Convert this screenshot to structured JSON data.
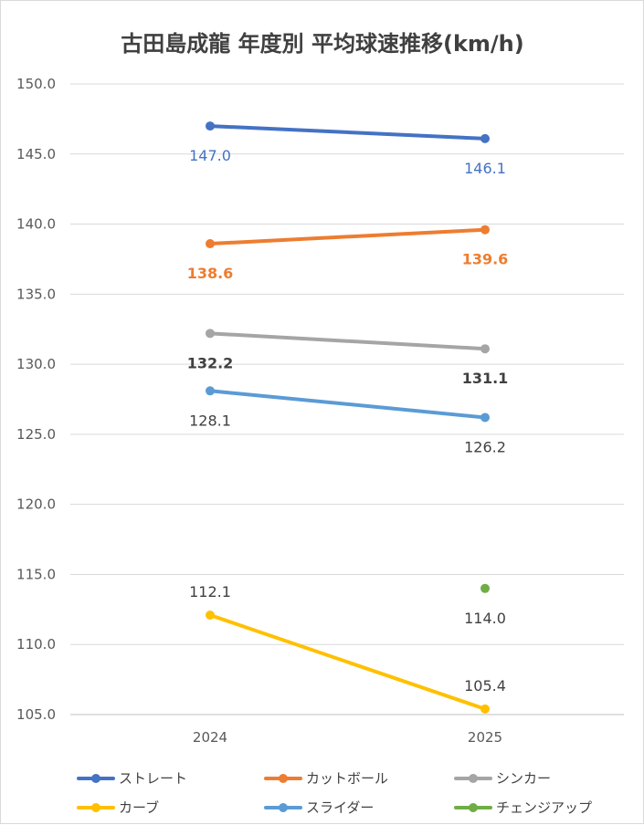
{
  "chart_data": {
    "type": "line",
    "title": "古田島成龍 年度別 平均球速推移(km/h)",
    "categories": [
      "2024",
      "2025"
    ],
    "ylim": [
      105,
      150
    ],
    "yticks": [
      "105.0",
      "110.0",
      "115.0",
      "120.0",
      "125.0",
      "130.0",
      "135.0",
      "140.0",
      "145.0",
      "150.0"
    ],
    "grid": true,
    "legend": "bottom",
    "series": [
      {
        "name": "ストレート",
        "values": [
          147.0,
          146.1
        ],
        "labels": [
          "147.0",
          "146.1"
        ],
        "color": "#4472C4",
        "label_color": "#4472C4",
        "label_pos": [
          "below",
          "below"
        ],
        "bold": false
      },
      {
        "name": "カットボール",
        "values": [
          138.6,
          139.6
        ],
        "labels": [
          "138.6",
          "139.6"
        ],
        "color": "#ED7D31",
        "label_color": "#ED7D31",
        "label_pos": [
          "below",
          "below"
        ],
        "bold": true
      },
      {
        "name": "シンカー",
        "values": [
          132.2,
          131.1
        ],
        "labels": [
          "132.2",
          "131.1"
        ],
        "color": "#A5A5A5",
        "label_color": "#404040",
        "label_pos": [
          "below",
          "below"
        ],
        "bold": true
      },
      {
        "name": "カーブ",
        "values": [
          112.1,
          105.4
        ],
        "labels": [
          "112.1",
          "105.4"
        ],
        "color": "#FFC000",
        "label_color": "#404040",
        "label_pos": [
          "above",
          "above"
        ],
        "bold": false
      },
      {
        "name": "スライダー",
        "values": [
          128.1,
          126.2
        ],
        "labels": [
          "128.1",
          "126.2"
        ],
        "color": "#5B9BD5",
        "label_color": "#404040",
        "label_pos": [
          "below",
          "below"
        ],
        "bold": false
      },
      {
        "name": "チェンジアップ",
        "values": [
          null,
          114.0
        ],
        "labels": [
          null,
          "114.0"
        ],
        "color": "#70AD47",
        "label_color": "#404040",
        "label_pos": [
          null,
          "below"
        ],
        "bold": false
      }
    ]
  }
}
